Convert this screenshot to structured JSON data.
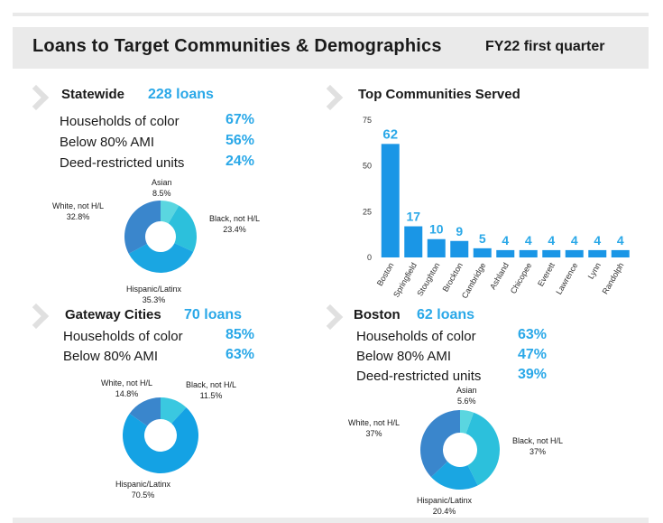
{
  "header": {
    "title": "Loans to Target Communities & Demographics",
    "subtitle": "FY22 first quarter"
  },
  "colors": {
    "accent": "#2aa8e8",
    "bar": "#1a96e6"
  },
  "statewide": {
    "title": "Statewide",
    "count": "228 loans",
    "stats": [
      {
        "label": "Households of color",
        "value": "67%"
      },
      {
        "label": "Below 80% AMI",
        "value": "56%"
      },
      {
        "label": "Deed-restricted units",
        "value": "24%"
      }
    ]
  },
  "gateway": {
    "title": "Gateway Cities",
    "count": "70 loans",
    "stats": [
      {
        "label": "Households of color",
        "value": "85%"
      },
      {
        "label": "Below 80% AMI",
        "value": "63%"
      }
    ]
  },
  "boston": {
    "title": "Boston",
    "count": "62 loans",
    "stats": [
      {
        "label": "Households of color",
        "value": "63%"
      },
      {
        "label": "Below 80% AMI",
        "value": "47%"
      },
      {
        "label": "Deed-restricted units",
        "value": "39%"
      }
    ]
  },
  "chart_data": [
    {
      "type": "bar",
      "title": "Top Communities Served",
      "categories": [
        "Boston",
        "Springfield",
        "Stoughton",
        "Brockton",
        "Cambridge",
        "Ashland",
        "Chicopee",
        "Everett",
        "Lawrence",
        "Lynn",
        "Randolph"
      ],
      "values": [
        62,
        17,
        10,
        9,
        5,
        4,
        4,
        4,
        4,
        4,
        4
      ],
      "yticks": [
        "0",
        "25",
        "50",
        "75"
      ],
      "ylim": [
        0,
        75
      ]
    },
    {
      "type": "pie",
      "title": "Statewide",
      "slices": [
        {
          "label": "Asian",
          "pct": "8.5%",
          "value": 8.5,
          "color": "#5ad6e0"
        },
        {
          "label": "Black, not H/L",
          "pct": "23.4%",
          "value": 23.4,
          "color": "#2cc0dc"
        },
        {
          "label": "Hispanic/Latinx",
          "pct": "35.3%",
          "value": 35.3,
          "color": "#1aa6e2"
        },
        {
          "label": "White, not H/L",
          "pct": "32.8%",
          "value": 32.8,
          "color": "#3a86cc"
        }
      ]
    },
    {
      "type": "pie",
      "title": "Gateway Cities",
      "slices": [
        {
          "label": "Black, not H/L",
          "pct": "11.5%",
          "value": 11.5,
          "color": "#3ac8e0"
        },
        {
          "label": "Hispanic/Latinx",
          "pct": "70.5%",
          "value": 70.5,
          "color": "#14a2e4"
        },
        {
          "label": "White, not H/L",
          "pct": "14.8%",
          "value": 14.8,
          "color": "#3a86cc"
        }
      ]
    },
    {
      "type": "pie",
      "title": "Boston",
      "slices": [
        {
          "label": "Asian",
          "pct": "5.6%",
          "value": 5.6,
          "color": "#5ad6e0"
        },
        {
          "label": "Black, not H/L",
          "pct": "37%",
          "value": 37,
          "color": "#2cc0dc"
        },
        {
          "label": "Hispanic/Latinx",
          "pct": "20.4%",
          "value": 20.4,
          "color": "#1aa6e2"
        },
        {
          "label": "White, not H/L",
          "pct": "37%",
          "value": 37,
          "color": "#3a86cc"
        }
      ]
    }
  ]
}
